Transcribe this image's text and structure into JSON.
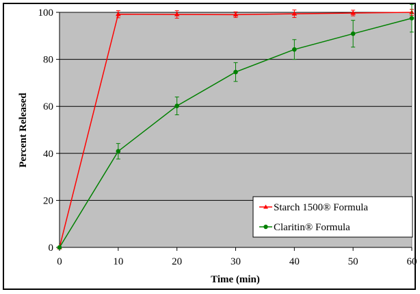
{
  "chart_data": {
    "type": "line",
    "xlabel": "Time (min)",
    "ylabel": "Percent Released",
    "xlim": [
      0,
      60
    ],
    "ylim": [
      0,
      100
    ],
    "x_ticks": [
      0,
      10,
      20,
      30,
      40,
      50,
      60
    ],
    "y_ticks": [
      0,
      20,
      40,
      60,
      80,
      100
    ],
    "grid": "horizontal",
    "legend_position": "bottom-right",
    "plot_background": "#c0c0c0",
    "series": [
      {
        "name": "Starch 1500® Formula",
        "color": "#ff0000",
        "marker": "triangle",
        "x": [
          0,
          10,
          20,
          30,
          40,
          50,
          60
        ],
        "y": [
          0,
          99.2,
          99.1,
          99.0,
          99.4,
          99.7,
          100.0
        ],
        "error": [
          0,
          1.5,
          1.6,
          1.2,
          1.6,
          1.2,
          1.3
        ]
      },
      {
        "name": "Claritin® Formula",
        "color": "#008000",
        "marker": "circle",
        "x": [
          0,
          10,
          20,
          30,
          40,
          50,
          60
        ],
        "y": [
          0,
          40.9,
          60.2,
          74.6,
          84.2,
          90.9,
          97.5
        ],
        "error": [
          0,
          3.3,
          3.8,
          4.0,
          4.2,
          5.7,
          5.9
        ]
      }
    ]
  }
}
